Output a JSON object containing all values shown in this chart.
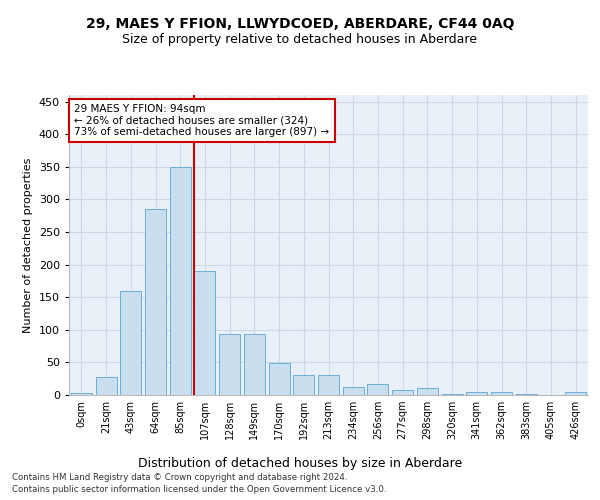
{
  "title": "29, MAES Y FFION, LLWYDCOED, ABERDARE, CF44 0AQ",
  "subtitle": "Size of property relative to detached houses in Aberdare",
  "xlabel": "Distribution of detached houses by size in Aberdare",
  "ylabel": "Number of detached properties",
  "bar_color": "#c9dff0",
  "bar_edge_color": "#6aaed6",
  "grid_color": "#ccd8e8",
  "background_color": "#eaf0f8",
  "vline_color": "#cc0000",
  "annotation_text": "29 MAES Y FFION: 94sqm\n← 26% of detached houses are smaller (324)\n73% of semi-detached houses are larger (897) →",
  "annotation_box_color": "#ffffff",
  "annotation_box_edge": "#cc0000",
  "categories": [
    "0sqm",
    "21sqm",
    "43sqm",
    "64sqm",
    "85sqm",
    "107sqm",
    "128sqm",
    "149sqm",
    "170sqm",
    "192sqm",
    "213sqm",
    "234sqm",
    "256sqm",
    "277sqm",
    "298sqm",
    "320sqm",
    "341sqm",
    "362sqm",
    "383sqm",
    "405sqm",
    "426sqm"
  ],
  "values": [
    3,
    28,
    160,
    285,
    350,
    190,
    93,
    93,
    49,
    30,
    30,
    13,
    17,
    7,
    10,
    2,
    5,
    5,
    2,
    0,
    4
  ],
  "ylim": [
    0,
    460
  ],
  "yticks": [
    0,
    50,
    100,
    150,
    200,
    250,
    300,
    350,
    400,
    450
  ],
  "footer_line1": "Contains HM Land Registry data © Crown copyright and database right 2024.",
  "footer_line2": "Contains public sector information licensed under the Open Government Licence v3.0.",
  "figsize": [
    6.0,
    5.0
  ],
  "dpi": 100
}
